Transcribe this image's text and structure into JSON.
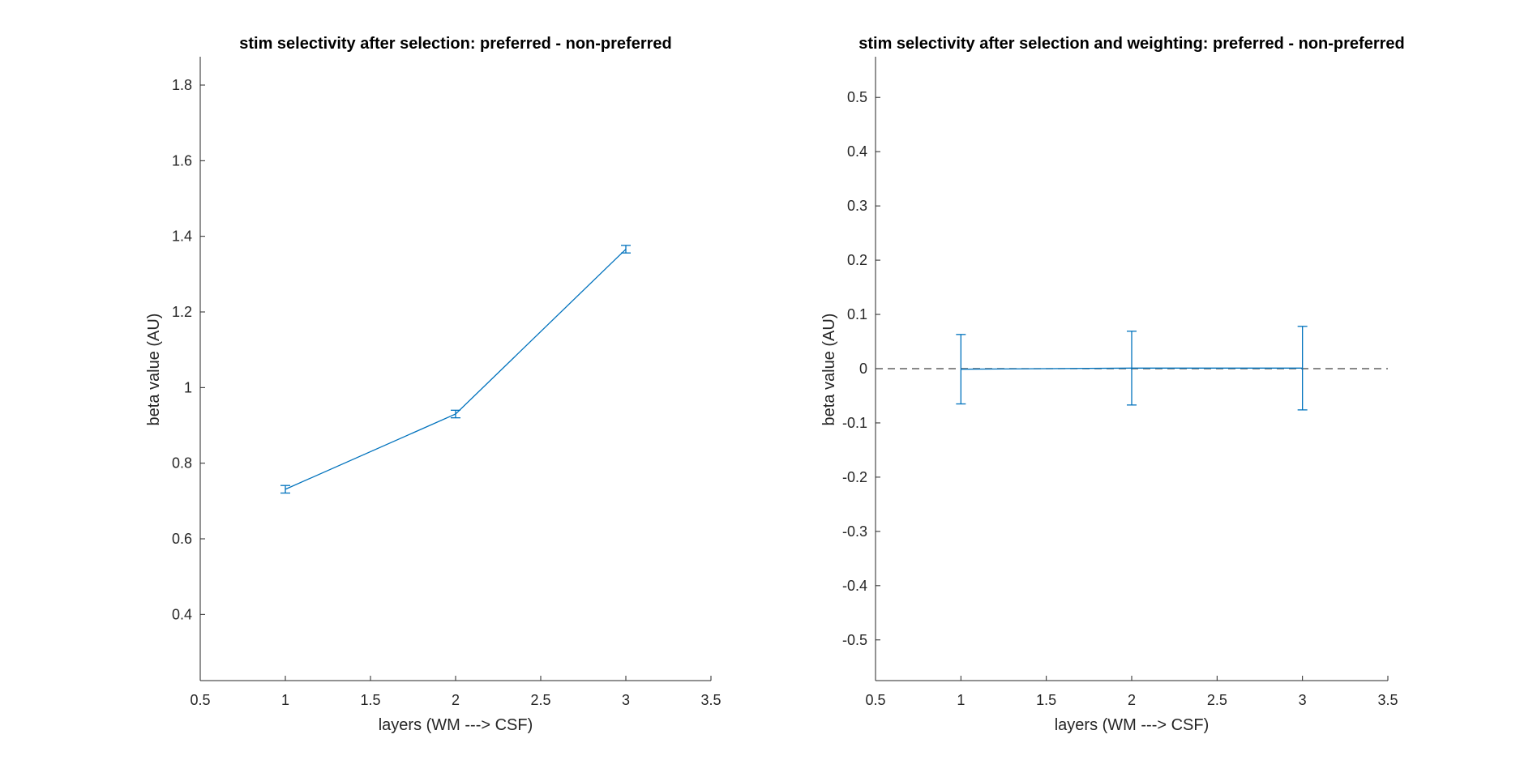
{
  "chart_data": [
    {
      "type": "line",
      "title": "stim selectivity after selection: preferred - non-preferred",
      "xlabel": "layers (WM ---> CSF)",
      "ylabel": "beta value (AU)",
      "xlim": [
        0.5,
        3.5
      ],
      "ylim": [
        0.225,
        1.875
      ],
      "xticks": [
        0.5,
        1,
        1.5,
        2,
        2.5,
        3,
        3.5
      ],
      "xtick_labels": [
        "0.5",
        "1",
        "1.5",
        "2",
        "2.5",
        "3",
        "3.5"
      ],
      "yticks": [
        0.4,
        0.6,
        0.8,
        1,
        1.2,
        1.4,
        1.6,
        1.8
      ],
      "ytick_labels": [
        "0.4",
        "0.6",
        "0.8",
        "1",
        "1.2",
        "1.4",
        "1.6",
        "1.8"
      ],
      "grid": false,
      "box": false,
      "series": [
        {
          "x": [
            1,
            2,
            3
          ],
          "y": [
            0.731,
            0.93,
            1.366
          ],
          "err": [
            0.01,
            0.01,
            0.01
          ],
          "color": "#0072BD"
        }
      ],
      "reference_line": null
    },
    {
      "type": "line",
      "title": "stim selectivity after selection and weighting: preferred - non-preferred",
      "xlabel": "layers (WM ---> CSF)",
      "ylabel": "beta value (AU)",
      "xlim": [
        0.5,
        3.5
      ],
      "ylim": [
        -0.575,
        0.575
      ],
      "xticks": [
        0.5,
        1,
        1.5,
        2,
        2.5,
        3,
        3.5
      ],
      "xtick_labels": [
        "0.5",
        "1",
        "1.5",
        "2",
        "2.5",
        "3",
        "3.5"
      ],
      "yticks": [
        -0.5,
        -0.4,
        -0.3,
        -0.2,
        -0.1,
        0,
        0.1,
        0.2,
        0.3,
        0.4,
        0.5
      ],
      "ytick_labels": [
        "-0.5",
        "-0.4",
        "-0.3",
        "-0.2",
        "-0.1",
        "0",
        "0.1",
        "0.2",
        "0.3",
        "0.4",
        "0.5"
      ],
      "grid": false,
      "box": false,
      "series": [
        {
          "x": [
            1,
            2,
            3
          ],
          "y": [
            -0.001,
            0.001,
            0.001
          ],
          "err": [
            0.064,
            0.068,
            0.077
          ],
          "color": "#0072BD"
        }
      ],
      "reference_line": {
        "y": 0,
        "style": "dashed",
        "color": "#404040"
      }
    }
  ]
}
